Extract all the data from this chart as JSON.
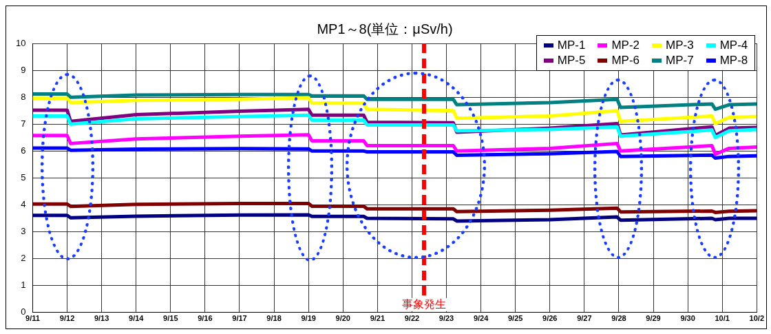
{
  "chart_data": {
    "type": "line",
    "title": "MP1～8(単位：μSv/h)",
    "x": [
      "--09-11T00:00",
      "--09-12T00:00",
      "--09-12T02:24",
      "--09-14T00:00",
      "--09-17T00:00",
      "--09-19T00:00",
      "--09-19T02:24",
      "--09-20T14:24",
      "--09-20T16:48",
      "--09-23T04:48",
      "--09-23T07:12",
      "--09-26T00:00",
      "--09-27T22:48",
      "--09-28T01:12",
      "--09-30T16:48",
      "--09-30T19:12",
      "--10-01T04:48",
      "--10-02T00:00"
    ],
    "xlim": [
      "--09-11",
      "--10-02"
    ],
    "xticks": [
      {
        "value": "--09-11",
        "label": "9/11"
      },
      {
        "value": "--09-12",
        "label": "9/12"
      },
      {
        "value": "--09-13",
        "label": "9/13"
      },
      {
        "value": "--09-14",
        "label": "9/14"
      },
      {
        "value": "--09-15",
        "label": "9/15"
      },
      {
        "value": "--09-16",
        "label": "9/16"
      },
      {
        "value": "--09-17",
        "label": "9/17"
      },
      {
        "value": "--09-18",
        "label": "9/18"
      },
      {
        "value": "--09-19",
        "label": "9/19"
      },
      {
        "value": "--09-20",
        "label": "9/20"
      },
      {
        "value": "--09-21",
        "label": "9/21"
      },
      {
        "value": "--09-22",
        "label": "9/22"
      },
      {
        "value": "--09-23",
        "label": "9/23"
      },
      {
        "value": "--09-24",
        "label": "9/24"
      },
      {
        "value": "--09-25",
        "label": "9/25"
      },
      {
        "value": "--09-26",
        "label": "9/26"
      },
      {
        "value": "--09-27",
        "label": "9/27"
      },
      {
        "value": "--09-28",
        "label": "9/28"
      },
      {
        "value": "--09-29",
        "label": "9/29"
      },
      {
        "value": "--09-30",
        "label": "9/30"
      },
      {
        "value": "--10-01",
        "label": "10/1"
      },
      {
        "value": "--10-02",
        "label": "10/2"
      }
    ],
    "ylim": [
      0,
      10
    ],
    "yticks": [
      0,
      1,
      2,
      3,
      4,
      5,
      6,
      7,
      8,
      9,
      10
    ],
    "grid": true,
    "legend": "top right",
    "ref_lines": [
      {
        "axis": "x",
        "value": "--09-22T08:24",
        "label": "事象発生",
        "color": "#ff0000",
        "line_style": "dashed"
      }
    ],
    "series": [
      {
        "name": "MP-1",
        "color": "#000080",
        "values": [
          3.61,
          3.61,
          3.52,
          3.58,
          3.62,
          3.63,
          3.57,
          3.57,
          3.5,
          3.48,
          3.4,
          3.45,
          3.55,
          3.43,
          3.5,
          3.45,
          3.5,
          3.5
        ]
      },
      {
        "name": "MP-2",
        "color": "#ff00ff",
        "values": [
          6.58,
          6.58,
          6.28,
          6.45,
          6.55,
          6.6,
          6.38,
          6.38,
          6.2,
          6.2,
          6.0,
          6.1,
          6.28,
          6.0,
          6.2,
          5.88,
          6.1,
          6.15
        ]
      },
      {
        "name": "MP-3",
        "color": "#ffff00",
        "values": [
          7.96,
          7.96,
          7.8,
          7.88,
          7.92,
          7.98,
          7.78,
          7.78,
          7.55,
          7.5,
          7.22,
          7.3,
          7.5,
          7.1,
          7.3,
          7.02,
          7.25,
          7.28
        ]
      },
      {
        "name": "MP-4",
        "color": "#00ffff",
        "values": [
          7.3,
          7.3,
          7.0,
          7.2,
          7.28,
          7.33,
          7.15,
          7.15,
          6.97,
          6.97,
          6.75,
          6.8,
          6.9,
          6.55,
          6.78,
          6.5,
          6.75,
          6.8
        ]
      },
      {
        "name": "MP-5",
        "color": "#800080",
        "values": [
          7.52,
          7.52,
          7.1,
          7.35,
          7.48,
          7.55,
          7.33,
          7.33,
          7.07,
          7.05,
          6.7,
          6.85,
          7.02,
          6.6,
          6.9,
          6.58,
          6.85,
          6.88
        ]
      },
      {
        "name": "MP-6",
        "color": "#800000",
        "values": [
          4.03,
          4.03,
          3.94,
          4.02,
          4.05,
          4.05,
          3.95,
          3.95,
          3.85,
          3.85,
          3.75,
          3.8,
          3.88,
          3.74,
          3.77,
          3.72,
          3.76,
          3.78
        ]
      },
      {
        "name": "MP-7",
        "color": "#008080",
        "values": [
          8.12,
          8.12,
          8.0,
          8.08,
          8.1,
          8.1,
          8.05,
          8.05,
          7.92,
          7.92,
          7.72,
          7.8,
          7.92,
          7.62,
          7.75,
          7.55,
          7.72,
          7.75
        ]
      },
      {
        "name": "MP-8",
        "color": "#0000ff",
        "values": [
          6.11,
          6.11,
          6.03,
          6.07,
          6.09,
          6.08,
          6.0,
          6.0,
          5.97,
          5.97,
          5.84,
          5.9,
          5.98,
          5.8,
          5.85,
          5.74,
          5.8,
          5.82
        ]
      }
    ]
  }
}
